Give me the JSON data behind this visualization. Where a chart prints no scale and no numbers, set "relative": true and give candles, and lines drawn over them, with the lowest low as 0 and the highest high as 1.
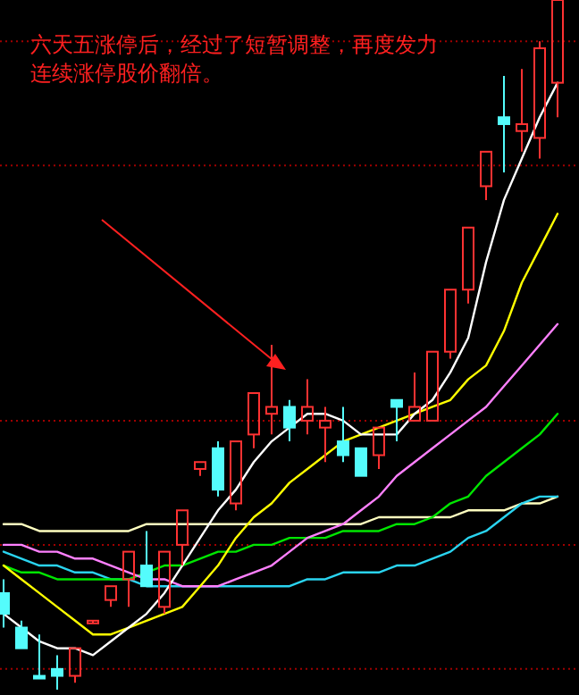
{
  "chart_data": {
    "type": "candlestick",
    "relative": true,
    "categories": [
      null,
      null,
      null,
      null,
      null,
      null,
      null,
      null,
      null,
      null,
      null,
      null,
      null,
      null,
      null,
      null,
      null,
      null,
      null,
      null,
      null,
      null,
      null,
      null,
      null,
      null,
      null,
      null,
      null,
      null,
      null,
      null
    ],
    "ohlc": [
      [
        0.14,
        0.16,
        0.09,
        0.11
      ],
      [
        0.09,
        0.1,
        0.06,
        0.06
      ],
      [
        0.02,
        0.08,
        0.02,
        0.02
      ],
      [
        0.03,
        0.05,
        0,
        0.02
      ],
      [
        0.02,
        0.06,
        0.01,
        0.06
      ],
      [
        0.1,
        0.1,
        0.1,
        0.1
      ],
      [
        0.13,
        0.15,
        0.12,
        0.15
      ],
      [
        0.16,
        0.2,
        0.12,
        0.2
      ],
      [
        0.18,
        0.23,
        0.15,
        0.15
      ],
      [
        0.12,
        0.2,
        0.11,
        0.2
      ],
      [
        0.21,
        0.26,
        0.18,
        0.26
      ],
      [
        0.32,
        0.33,
        0.31,
        0.33
      ],
      [
        0.35,
        0.36,
        0.28,
        0.29
      ],
      [
        0.27,
        0.36,
        0.26,
        0.36
      ],
      [
        0.37,
        0.43,
        0.35,
        0.43
      ],
      [
        0.4,
        0.5,
        0.37,
        0.41
      ],
      [
        0.41,
        0.42,
        0.36,
        0.38
      ],
      [
        0.39,
        0.45,
        0.37,
        0.41
      ],
      [
        0.38,
        0.41,
        0.33,
        0.39
      ],
      [
        0.36,
        0.41,
        0.33,
        0.34
      ],
      [
        0.35,
        0.35,
        0.31,
        0.31
      ],
      [
        0.34,
        0.38,
        0.32,
        0.38
      ],
      [
        0.42,
        0.42,
        0.36,
        0.41
      ],
      [
        0.39,
        0.46,
        0.39,
        0.41
      ],
      [
        0.39,
        0.49,
        0.39,
        0.49
      ],
      [
        0.49,
        0.58,
        0.48,
        0.58
      ],
      [
        0.58,
        0.67,
        0.56,
        0.67
      ],
      [
        0.73,
        0.78,
        0.71,
        0.78
      ],
      [
        0.83,
        0.89,
        0.75,
        0.82
      ],
      [
        0.81,
        0.9,
        0.78,
        0.82
      ],
      [
        0.8,
        0.94,
        0.77,
        0.93
      ],
      [
        0.88,
        1,
        0.83,
        1
      ]
    ],
    "colors": [
      "#54fcfc",
      "#54fcfc",
      "#54fcfc",
      "#54fcfc",
      "#ff3232",
      "#ff3232",
      "#ff3232",
      "#ff3232",
      "#54fcfc",
      "#ff3232",
      "#ff3232",
      "#ff3232",
      "#54fcfc",
      "#ff3232",
      "#ff3232",
      "#ff3232",
      "#54fcfc",
      "#ff3232",
      "#ff3232",
      "#54fcfc",
      "#54fcfc",
      "#ff3232",
      "#54fcfc",
      "#ff3232",
      "#ff3232",
      "#ff3232",
      "#ff3232",
      "#ff3232",
      "#54fcfc",
      "#ff3232",
      "#ff3232",
      "#ff3232"
    ],
    "series": [
      {
        "type": "line",
        "color": "#ffffc0",
        "values": [
          0.24,
          0.24,
          0.23,
          0.23,
          0.23,
          0.23,
          0.23,
          0.23,
          0.24,
          0.24,
          0.24,
          0.24,
          0.24,
          0.24,
          0.24,
          0.24,
          0.24,
          0.24,
          0.24,
          0.24,
          0.24,
          0.25,
          0.25,
          0.25,
          0.25,
          0.25,
          0.26,
          0.26,
          0.26,
          0.27,
          0.27,
          0.28
        ]
      },
      {
        "type": "line",
        "color": "#2ad4f0",
        "values": [
          0.2,
          0.19,
          0.18,
          0.18,
          0.17,
          0.17,
          0.16,
          0.16,
          0.15,
          0.15,
          0.15,
          0.15,
          0.15,
          0.15,
          0.15,
          0.15,
          0.15,
          0.16,
          0.16,
          0.17,
          0.17,
          0.17,
          0.18,
          0.18,
          0.19,
          0.2,
          0.22,
          0.23,
          0.25,
          0.27,
          0.28,
          0.28
        ]
      },
      {
        "type": "line",
        "color": "#00e600",
        "values": [
          0.18,
          0.17,
          0.17,
          0.16,
          0.16,
          0.16,
          0.16,
          0.16,
          0.17,
          0.18,
          0.18,
          0.19,
          0.2,
          0.2,
          0.21,
          0.21,
          0.22,
          0.22,
          0.22,
          0.23,
          0.23,
          0.23,
          0.24,
          0.24,
          0.25,
          0.27,
          0.28,
          0.31,
          0.33,
          0.35,
          0.37,
          0.4
        ]
      },
      {
        "type": "line",
        "color": "#ff80ff",
        "values": [
          0.21,
          0.21,
          0.2,
          0.2,
          0.19,
          0.19,
          0.18,
          0.17,
          0.16,
          0.16,
          0.15,
          0.15,
          0.15,
          0.16,
          0.17,
          0.18,
          0.2,
          0.22,
          0.23,
          0.24,
          0.26,
          0.28,
          0.31,
          0.33,
          0.35,
          0.37,
          0.39,
          0.41,
          0.44,
          0.47,
          0.5,
          0.53
        ]
      },
      {
        "type": "line",
        "color": "#ffff00",
        "values": [
          0.18,
          0.16,
          0.14,
          0.12,
          0.1,
          0.08,
          0.08,
          0.09,
          0.1,
          0.11,
          0.12,
          0.15,
          0.18,
          0.22,
          0.25,
          0.27,
          0.3,
          0.32,
          0.34,
          0.36,
          0.37,
          0.38,
          0.39,
          0.4,
          0.41,
          0.42,
          0.45,
          0.47,
          0.52,
          0.59,
          0.64,
          0.69
        ]
      },
      {
        "type": "line",
        "color": "#ffffff",
        "values": [
          0.11,
          0.09,
          0.07,
          0.06,
          0.06,
          0.05,
          0.07,
          0.09,
          0.11,
          0.14,
          0.18,
          0.22,
          0.26,
          0.29,
          0.33,
          0.36,
          0.38,
          0.4,
          0.4,
          0.39,
          0.37,
          0.37,
          0.37,
          0.4,
          0.42,
          0.46,
          0.51,
          0.62,
          0.71,
          0.77,
          0.83,
          0.88
        ]
      }
    ],
    "ref_lines": [
      {
        "axis": "y",
        "value": 0.94,
        "color": "#a00000",
        "line_style": "dotted"
      },
      {
        "axis": "y",
        "value": 0.76,
        "color": "#a00000",
        "line_style": "dotted"
      },
      {
        "axis": "y",
        "value": 0.39,
        "color": "#a00000",
        "line_style": "dotted"
      },
      {
        "axis": "y",
        "value": 0.21,
        "color": "#a00000",
        "line_style": "dotted"
      },
      {
        "axis": "y",
        "value": 0.03,
        "color": "#a00000",
        "line_style": "dotted"
      }
    ],
    "annotations": [
      "六天五涨停后，经过了短暂调整，再度发力连续涨停股价翻倍。"
    ]
  }
}
